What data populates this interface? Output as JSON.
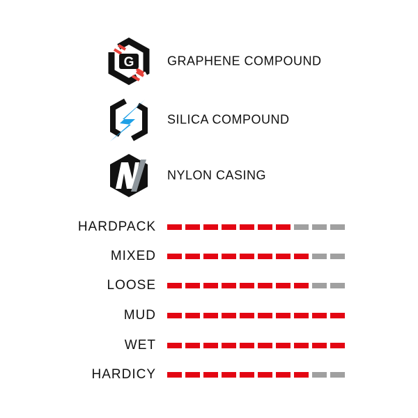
{
  "features": [
    {
      "icon": "graphene-hex-icon",
      "label": "GRAPHENE COMPOUND"
    },
    {
      "icon": "silica-lightning-hex-icon",
      "label": "SILICA COMPOUND"
    },
    {
      "icon": "nylon-n-hex-icon",
      "label": "NYLON CASING"
    }
  ],
  "ratings": {
    "max": 10,
    "items": [
      {
        "label": "HARDPACK",
        "value": 7
      },
      {
        "label": "MIXED",
        "value": 8
      },
      {
        "label": "LOOSE",
        "value": 8
      },
      {
        "label": "MUD",
        "value": 10
      },
      {
        "label": "WET",
        "value": 10
      },
      {
        "label": "HARDICY",
        "value": 8
      }
    ]
  },
  "colors": {
    "filled": "#e30613",
    "empty": "#a0a0a0",
    "silica": "#1ea0e6",
    "graphene_accent": "#e8423a",
    "nylon_slash": "#8e969c"
  }
}
